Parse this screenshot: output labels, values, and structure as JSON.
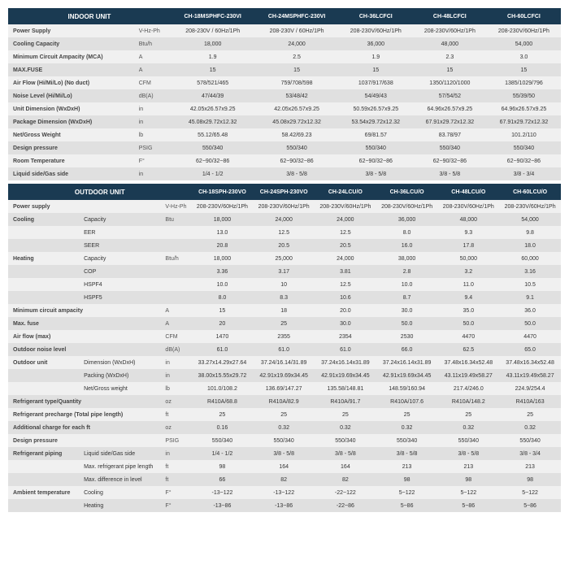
{
  "colors": {
    "header_bg": "#1a3a52",
    "header_fg": "#ffffff",
    "row_even": "#f0f0f0",
    "row_odd": "#e0e0e0"
  },
  "indoor": {
    "title": "INDOOR UNIT",
    "models": [
      "CH-18MSPHFC-230VI",
      "CH-24MSPHFC-230VI",
      "CH-36LCFCI",
      "CH-48LCFCI",
      "CH-60LCFCI"
    ],
    "rows": [
      {
        "l": "Power Supply",
        "u": "V-Hz-Ph",
        "v": [
          "208-230V / 60Hz/1Ph",
          "208-230V / 60Hz/1Ph",
          "208-230V/60Hz/1Ph",
          "208-230V/60Hz/1Ph",
          "208-230V/60Hz/1Ph"
        ]
      },
      {
        "l": "Cooling Capacity",
        "u": "Btu/h",
        "v": [
          "18,000",
          "24,000",
          "36,000",
          "48,000",
          "54,000"
        ]
      },
      {
        "l": "Minimum Circuit Ampacity (MCA)",
        "u": "A",
        "v": [
          "1.9",
          "2.5",
          "1.9",
          "2.3",
          "3.0"
        ]
      },
      {
        "l": "MAX.FUSE",
        "u": "A",
        "v": [
          "15",
          "15",
          "15",
          "15",
          "15"
        ]
      },
      {
        "l": "Air Flow (Hi/Mi/Lo) (No duct)",
        "u": "CFM",
        "v": [
          "578/521/465",
          "759/708/598",
          "1037/917/638",
          "1350/1120/1000",
          "1385/1029/796"
        ]
      },
      {
        "l": "Noise Level (Hi/Mi/Lo)",
        "u": "dB(A)",
        "v": [
          "47/44/39",
          "53/48/42",
          "54/49/43",
          "57/54/52",
          "55/39/50"
        ]
      },
      {
        "l": "Unit Dimension (WxDxH)",
        "u": "in",
        "v": [
          "42.05x26.57x9.25",
          "42.05x26.57x9.25",
          "50.59x26.57x9.25",
          "64.96x26.57x9.25",
          "64.96x26.57x9.25"
        ]
      },
      {
        "l": "Package Dimension (WxDxH)",
        "u": "in",
        "v": [
          "45.08x29.72x12.32",
          "45.08x29.72x12.32",
          "53.54x29.72x12.32",
          "67.91x29.72x12.32",
          "67.91x29.72x12.32"
        ]
      },
      {
        "l": "Net/Gross Weight",
        "u": "lb",
        "v": [
          "55.12/65.48",
          "58.42/69.23",
          "69/81.57",
          "83.78/97",
          "101.2/110"
        ]
      },
      {
        "l": "Design pressure",
        "u": "PSIG",
        "v": [
          "550/340",
          "550/340",
          "550/340",
          "550/340",
          "550/340"
        ]
      },
      {
        "l": "Room Temperature",
        "u": "F°",
        "v": [
          "62~90/32~86",
          "62~90/32~86",
          "62~90/32~86",
          "62~90/32~86",
          "62~90/32~86"
        ]
      },
      {
        "l": "Liquid side/Gas side",
        "u": "in",
        "v": [
          "1/4 - 1/2",
          "3/8 - 5/8",
          "3/8 - 5/8",
          "3/8 - 5/8",
          "3/8 - 3/4"
        ]
      }
    ]
  },
  "outdoor": {
    "title": "OUTDOOR UNIT",
    "models": [
      "CH-18SPH-230VO",
      "CH-24SPH-230VO",
      "CH-24LCU/O",
      "CH-36LCU/O",
      "CH-48LCU/O",
      "CH-60LCU/O"
    ],
    "rows": [
      {
        "l": "Power supply",
        "l2": "",
        "u": "V-Hz-Ph",
        "v": [
          "208-230V/60Hz/1Ph",
          "208-230V/60Hz/1Ph",
          "208-230V/60Hz/1Ph",
          "208-230V/60Hz/1Ph",
          "208-230V/60Hz/1Ph",
          "208-230V/60Hz/1Ph"
        ]
      },
      {
        "l": "Cooling",
        "l2": "Capacity",
        "u": "Btu",
        "v": [
          "18,000",
          "24,000",
          "24,000",
          "36,000",
          "48,000",
          "54,000"
        ]
      },
      {
        "l": "",
        "l2": "EER",
        "u": "",
        "v": [
          "13.0",
          "12.5",
          "12.5",
          "8.0",
          "9.3",
          "9.8"
        ]
      },
      {
        "l": "",
        "l2": "SEER",
        "u": "",
        "v": [
          "20.8",
          "20.5",
          "20.5",
          "16.0",
          "17.8",
          "18.0"
        ]
      },
      {
        "l": "Heating",
        "l2": "Capacity",
        "u": "Btu/h",
        "v": [
          "18,000",
          "25,000",
          "24,000",
          "38,000",
          "50,000",
          "60,000"
        ]
      },
      {
        "l": "",
        "l2": "COP",
        "u": "",
        "v": [
          "3.36",
          "3.17",
          "3.81",
          "2.8",
          "3.2",
          "3.16"
        ]
      },
      {
        "l": "",
        "l2": "HSPF4",
        "u": "",
        "v": [
          "10.0",
          "10",
          "12.5",
          "10.0",
          "11.0",
          "10.5"
        ]
      },
      {
        "l": "",
        "l2": "HSPF5",
        "u": "",
        "v": [
          "8.0",
          "8.3",
          "10.6",
          "8.7",
          "9.4",
          "9.1"
        ]
      },
      {
        "l": "Minimum circuit ampacity",
        "l2": "",
        "u": "A",
        "v": [
          "15",
          "18",
          "20.0",
          "30.0",
          "35.0",
          "36.0"
        ]
      },
      {
        "l": "Max. fuse",
        "l2": "",
        "u": "A",
        "v": [
          "20",
          "25",
          "30.0",
          "50.0",
          "50.0",
          "50.0"
        ]
      },
      {
        "l": "Air flow (max)",
        "l2": "",
        "u": "CFM",
        "v": [
          "1470",
          "2355",
          "2354",
          "2530",
          "4470",
          "4470"
        ]
      },
      {
        "l": "Outdoor noise level",
        "l2": "",
        "u": "dB(A)",
        "v": [
          "61.0",
          "61.0",
          "61.0",
          "66.0",
          "62.5",
          "65.0"
        ]
      },
      {
        "l": "Outdoor unit",
        "l2": "Dimension (WxDxH)",
        "u": "in",
        "v": [
          "33.27x14.29x27.64",
          "37.24/16.14/31.89",
          "37.24x16.14x31.89",
          "37.24x16.14x31.89",
          "37.48x16.34x52.48",
          "37.48x16.34x52.48"
        ]
      },
      {
        "l": "",
        "l2": "Packing (WxDxH)",
        "u": "in",
        "v": [
          "38.00x15.55x29.72",
          "42.91x19.69x34.45",
          "42.91x19.69x34.45",
          "42.91x19.69x34.45",
          "43.11x19.49x58.27",
          "43.11x19.49x58.27"
        ]
      },
      {
        "l": "",
        "l2": "Net/Gross weight",
        "u": "lb",
        "v": [
          "101.0/108.2",
          "136.69/147.27",
          "135.58/148.81",
          "148.59/160.94",
          "217.4/246.0",
          "224.9/254.4"
        ]
      },
      {
        "l": "Refrigerant type/Quantity",
        "l2": "",
        "u": "oz",
        "v": [
          "R410A/68.8",
          "R410A/82.9",
          "R410A/91.7",
          "R410A/107.6",
          "R410A/148.2",
          "R410A/163"
        ]
      },
      {
        "l": "Refrigerant precharge (Total pipe length)",
        "l2": "",
        "u": "ft",
        "v": [
          "25",
          "25",
          "25",
          "25",
          "25",
          "25"
        ]
      },
      {
        "l": "Additional charge for each ft",
        "l2": "",
        "u": "oz",
        "v": [
          "0.16",
          "0.32",
          "0.32",
          "0.32",
          "0.32",
          "0.32"
        ]
      },
      {
        "l": "Design pressure",
        "l2": "",
        "u": "PSIG",
        "v": [
          "550/340",
          "550/340",
          "550/340",
          "550/340",
          "550/340",
          "550/340"
        ]
      },
      {
        "l": "Refrigerant piping",
        "l2": "Liquid side/Gas side",
        "u": "in",
        "v": [
          "1/4 - 1/2",
          "3/8 - 5/8",
          "3/8 - 5/8",
          "3/8 - 5/8",
          "3/8 - 5/8",
          "3/8 - 3/4"
        ]
      },
      {
        "l": "",
        "l2": "Max. refrigerant pipe length",
        "u": "ft",
        "v": [
          "98",
          "164",
          "164",
          "213",
          "213",
          "213"
        ]
      },
      {
        "l": "",
        "l2": "Max. difference in level",
        "u": "ft",
        "v": [
          "66",
          "82",
          "82",
          "98",
          "98",
          "98"
        ]
      },
      {
        "l": "Ambient temperature",
        "l2": "Cooling",
        "u": "F°",
        "v": [
          "-13~122",
          "-13~122",
          "-22~122",
          "5~122",
          "5~122",
          "5~122"
        ]
      },
      {
        "l": "",
        "l2": "Heating",
        "u": "F°",
        "v": [
          "-13~86",
          "-13~86",
          "-22~86",
          "5~86",
          "5~86",
          "5~86"
        ]
      }
    ]
  }
}
